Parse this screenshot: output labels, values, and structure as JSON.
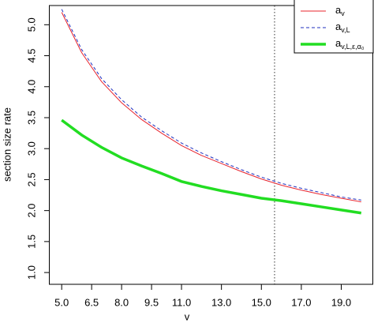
{
  "chart_data": {
    "type": "line",
    "xlabel": "v",
    "ylabel": "section size rate",
    "x": [
      5,
      6,
      7,
      8,
      9,
      10,
      11,
      12,
      13,
      14,
      15,
      16,
      17,
      18,
      19,
      20
    ],
    "series": [
      {
        "name": "a",
        "sub": "v",
        "color": "#e8242e",
        "dash": "none",
        "width": 1,
        "values": [
          5.2,
          4.55,
          4.08,
          3.74,
          3.47,
          3.25,
          3.05,
          2.89,
          2.76,
          2.63,
          2.51,
          2.41,
          2.33,
          2.26,
          2.2,
          2.14
        ]
      },
      {
        "name": "a",
        "sub": "v,L",
        "color": "#1f2fbf",
        "dash": "4,3",
        "width": 1,
        "values": [
          5.25,
          4.6,
          4.13,
          3.79,
          3.51,
          3.29,
          3.09,
          2.93,
          2.79,
          2.66,
          2.54,
          2.44,
          2.36,
          2.29,
          2.22,
          2.17
        ]
      },
      {
        "name": "a",
        "sub": "v,L,ε,α₀",
        "color": "#22dd22",
        "dash": "none",
        "width": 3.5,
        "values": [
          3.46,
          3.22,
          3.02,
          2.85,
          2.72,
          2.6,
          2.47,
          2.39,
          2.32,
          2.26,
          2.2,
          2.16,
          2.11,
          2.06,
          2.01,
          1.96
        ]
      }
    ],
    "vline": 15.66,
    "xlim": [
      4.4,
      20.6
    ],
    "xticks": [
      {
        "value": 5,
        "label": "5.0"
      },
      {
        "value": 6.5,
        "label": "6.5"
      },
      {
        "value": 8,
        "label": "8.0"
      },
      {
        "value": 9.5,
        "label": "9.5"
      },
      {
        "value": 11,
        "label": "11.0"
      },
      {
        "value": 13,
        "label": "13.0"
      },
      {
        "value": 15,
        "label": "15.0"
      },
      {
        "value": 17,
        "label": "17.0"
      },
      {
        "value": 19,
        "label": "19.0"
      }
    ],
    "ylim": [
      0.81,
      5.31
    ],
    "yticks": [
      {
        "value": 1,
        "label": "1.0"
      },
      {
        "value": 1.5,
        "label": "1.5"
      },
      {
        "value": 2,
        "label": "2.0"
      },
      {
        "value": 2.5,
        "label": "2.5"
      },
      {
        "value": 3,
        "label": "3.0"
      },
      {
        "value": 3.5,
        "label": "3.5"
      },
      {
        "value": 4,
        "label": "4.0"
      },
      {
        "value": 4.5,
        "label": "4.5"
      },
      {
        "value": 5,
        "label": "5.0"
      }
    ],
    "legend": "top-right"
  }
}
